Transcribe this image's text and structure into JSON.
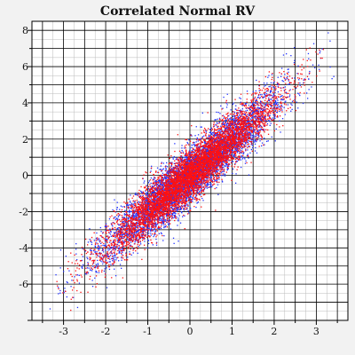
{
  "chart_data": {
    "type": "scatter",
    "title": "Correlated Normal RV",
    "xlabel": "",
    "ylabel": "",
    "xlim": [
      -3.75,
      3.75
    ],
    "ylim": [
      -8,
      8.5
    ],
    "x_ticks": [
      -3,
      -2,
      -1,
      0,
      1,
      2,
      3
    ],
    "y_ticks": [
      -6,
      -4,
      -2,
      0,
      2,
      4,
      6,
      8
    ],
    "grid": true,
    "legend": "none",
    "series": [
      {
        "color": "#2233ff",
        "points_approx": 10000,
        "x_mean": 0,
        "x_sd": 1,
        "slope": 2.0,
        "residual_sd": 0.75
      },
      {
        "color": "#ff1111",
        "points_approx": 10000,
        "x_mean": 0,
        "x_sd": 1,
        "slope": 2.0,
        "residual_sd": 0.7
      }
    ]
  },
  "colors": {
    "background": "#f2f2f2",
    "plot_background": "#ffffff",
    "major_grid": "#000000",
    "minor_grid": "#bbbbbb"
  }
}
